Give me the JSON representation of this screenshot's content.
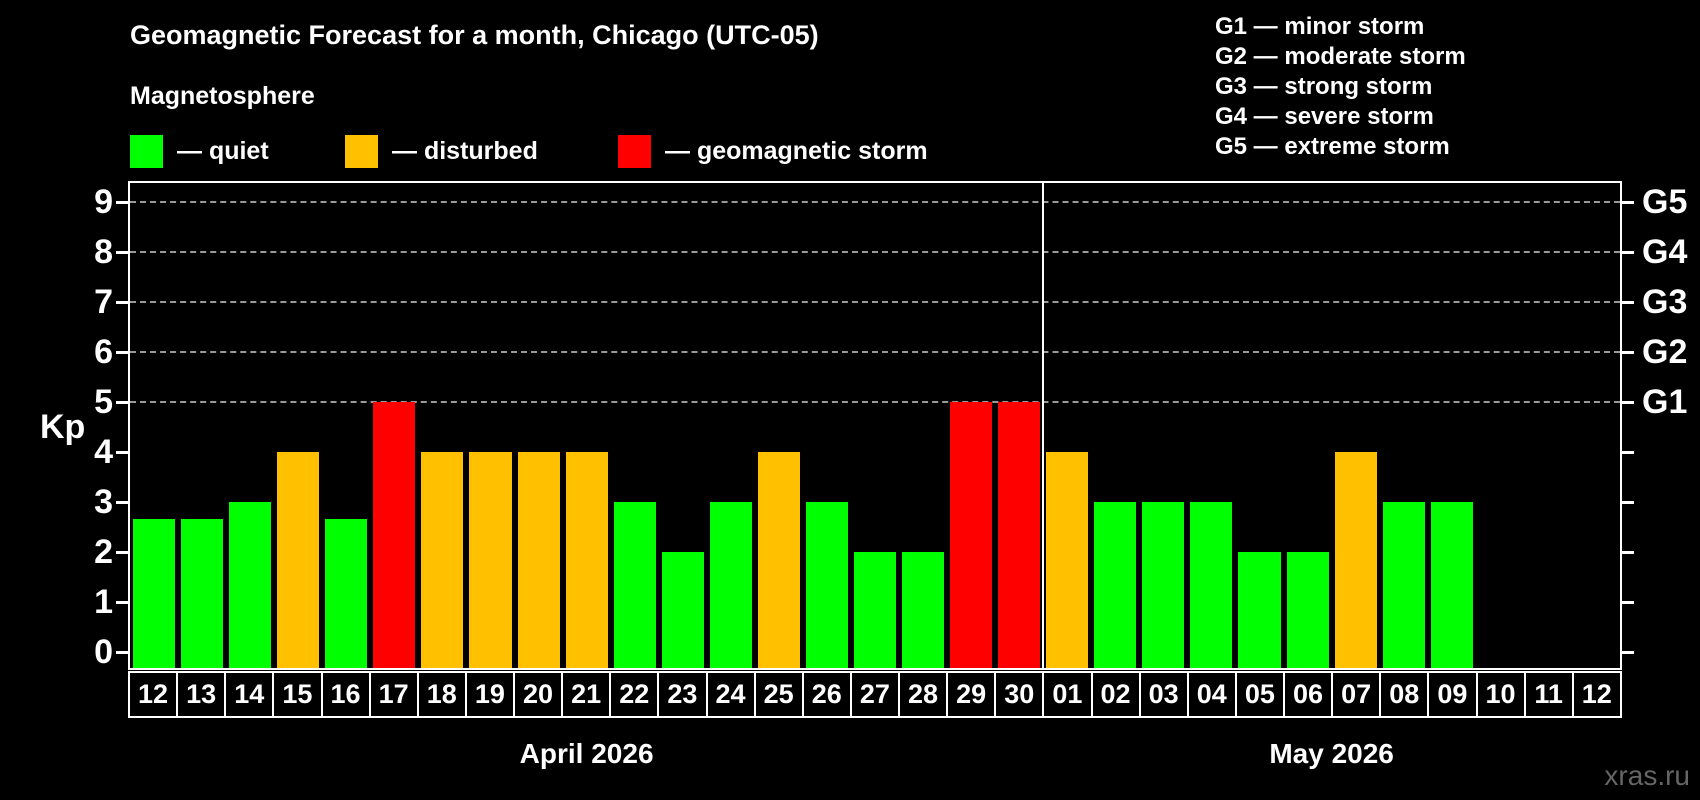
{
  "title": "Geomagnetic Forecast for a month, Chicago (UTC-05)",
  "subtitle": "Magnetosphere",
  "legend": [
    {
      "key": "quiet",
      "label": "— quiet",
      "color": "#00ff00"
    },
    {
      "key": "disturbed",
      "label": "— disturbed",
      "color": "#ffc000"
    },
    {
      "key": "storm",
      "label": "— geomagnetic storm",
      "color": "#ff0000"
    }
  ],
  "legend_offsets": [
    0,
    215,
    488
  ],
  "g_legend": [
    "G1 — minor storm",
    "G2 — moderate storm",
    "G3 — strong storm",
    "G4 — severe storm",
    "G5 — extreme storm"
  ],
  "watermark": "xras.ru",
  "chart_data": {
    "type": "bar",
    "title": "Geomagnetic Forecast for a month, Chicago (UTC-05)",
    "ylabel": "Kp",
    "ylim": [
      0,
      9.7
    ],
    "yticks": [
      0,
      1,
      2,
      3,
      4,
      5,
      6,
      7,
      8,
      9
    ],
    "gridlines_kp": [
      5,
      6,
      7,
      8,
      9
    ],
    "grid_style": "dashed horizontal lines at storm levels only",
    "right_axis": [
      {
        "label": "G1",
        "kp": 5
      },
      {
        "label": "G2",
        "kp": 6
      },
      {
        "label": "G3",
        "kp": 7
      },
      {
        "label": "G4",
        "kp": 8
      },
      {
        "label": "G5",
        "kp": 9
      }
    ],
    "months": [
      {
        "label": "April 2026",
        "days": 19
      },
      {
        "label": "May 2026",
        "days": 12
      }
    ],
    "categories": [
      "12",
      "13",
      "14",
      "15",
      "16",
      "17",
      "18",
      "19",
      "20",
      "21",
      "22",
      "23",
      "24",
      "25",
      "26",
      "27",
      "28",
      "29",
      "30",
      "01",
      "02",
      "03",
      "04",
      "05",
      "06",
      "07",
      "08",
      "09",
      "10",
      "11",
      "12"
    ],
    "bars": [
      {
        "day": "12",
        "kp": 2.67,
        "status": "quiet"
      },
      {
        "day": "13",
        "kp": 2.67,
        "status": "quiet"
      },
      {
        "day": "14",
        "kp": 3,
        "status": "quiet"
      },
      {
        "day": "15",
        "kp": 4,
        "status": "disturbed"
      },
      {
        "day": "16",
        "kp": 2.67,
        "status": "quiet"
      },
      {
        "day": "17",
        "kp": 5,
        "status": "storm"
      },
      {
        "day": "18",
        "kp": 4,
        "status": "disturbed"
      },
      {
        "day": "19",
        "kp": 4,
        "status": "disturbed"
      },
      {
        "day": "20",
        "kp": 4,
        "status": "disturbed"
      },
      {
        "day": "21",
        "kp": 4,
        "status": "disturbed"
      },
      {
        "day": "22",
        "kp": 3,
        "status": "quiet"
      },
      {
        "day": "23",
        "kp": 2,
        "status": "quiet"
      },
      {
        "day": "24",
        "kp": 3,
        "status": "quiet"
      },
      {
        "day": "25",
        "kp": 4,
        "status": "disturbed"
      },
      {
        "day": "26",
        "kp": 3,
        "status": "quiet"
      },
      {
        "day": "27",
        "kp": 2,
        "status": "quiet"
      },
      {
        "day": "28",
        "kp": 2,
        "status": "quiet"
      },
      {
        "day": "29",
        "kp": 5,
        "status": "storm"
      },
      {
        "day": "30",
        "kp": 5,
        "status": "storm"
      },
      {
        "day": "01",
        "kp": 4,
        "status": "disturbed"
      },
      {
        "day": "02",
        "kp": 3,
        "status": "quiet"
      },
      {
        "day": "03",
        "kp": 3,
        "status": "quiet"
      },
      {
        "day": "04",
        "kp": 3,
        "status": "quiet"
      },
      {
        "day": "05",
        "kp": 2,
        "status": "quiet"
      },
      {
        "day": "06",
        "kp": 2,
        "status": "quiet"
      },
      {
        "day": "07",
        "kp": 4,
        "status": "disturbed"
      },
      {
        "day": "08",
        "kp": 3,
        "status": "quiet"
      },
      {
        "day": "09",
        "kp": 3,
        "status": "quiet"
      },
      {
        "day": "10",
        "kp": null,
        "status": null
      },
      {
        "day": "11",
        "kp": null,
        "status": null
      },
      {
        "day": "12",
        "kp": null,
        "status": null
      }
    ],
    "status_colors": {
      "quiet": "#00ff00",
      "disturbed": "#ffc000",
      "storm": "#ff0000"
    },
    "legend_position": "top-left",
    "month_divider": "solid white vertical line between April 30 and May 01"
  }
}
